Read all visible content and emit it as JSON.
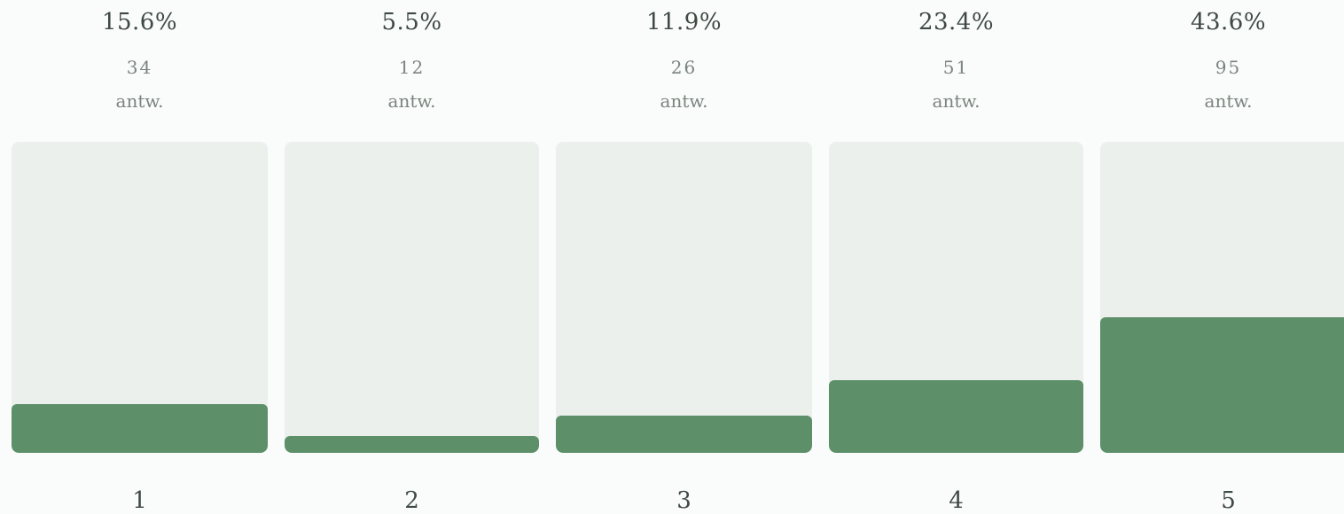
{
  "chart_data": {
    "type": "bar",
    "categories": [
      "1",
      "2",
      "3",
      "4",
      "5"
    ],
    "values": [
      15.6,
      5.5,
      11.9,
      23.4,
      43.6
    ],
    "percent_labels": [
      "15.6%",
      "5.5%",
      "11.9%",
      "23.4%",
      "43.6%"
    ],
    "counts": [
      "34",
      "12",
      "26",
      "51",
      "95"
    ],
    "count_unit": "antw.",
    "ylim": [
      0,
      100
    ],
    "colors": {
      "fill": "#5d8f69",
      "track": "#ecf0ed"
    }
  }
}
